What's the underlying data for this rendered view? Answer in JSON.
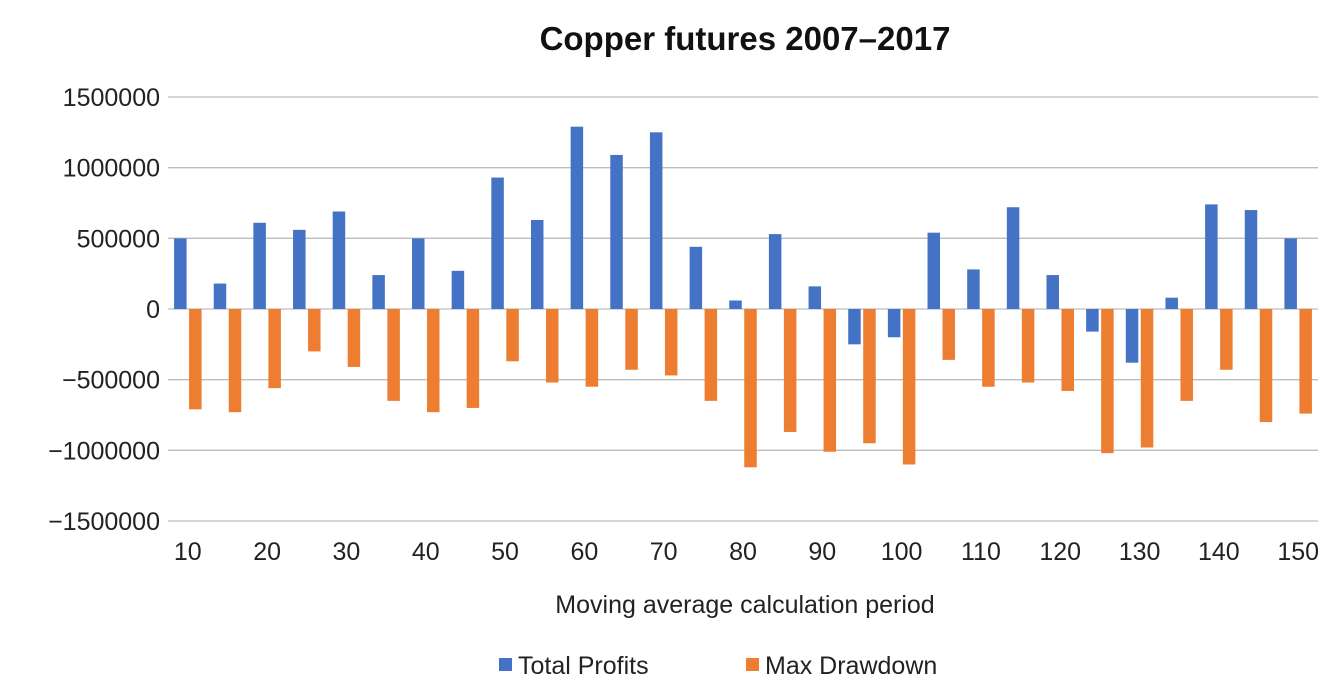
{
  "chart_data": {
    "type": "bar",
    "title": "Copper futures 2007–2017",
    "xlabel": "Moving average calculation period",
    "ylabel": "",
    "ylim": [
      -1500000,
      1500000
    ],
    "y_ticks": [
      1500000,
      1000000,
      500000,
      0,
      -500000,
      -1000000,
      -1500000
    ],
    "y_tick_labels": [
      "1500000",
      "1000000",
      "500000",
      "0",
      "−500000",
      "−1000000",
      "−1500000"
    ],
    "x_tick_labels": [
      "10",
      "20",
      "30",
      "40",
      "50",
      "60",
      "70",
      "80",
      "90",
      "100",
      "110",
      "120",
      "130",
      "140",
      "150"
    ],
    "categories": [
      10,
      15,
      20,
      25,
      30,
      35,
      40,
      45,
      50,
      55,
      60,
      65,
      70,
      75,
      80,
      85,
      90,
      95,
      100,
      105,
      110,
      115,
      120,
      125,
      130,
      135,
      140,
      145,
      150
    ],
    "grid": true,
    "legend_position": "bottom",
    "series": [
      {
        "name": "Total Profits",
        "color": "#4472c4",
        "values": [
          500000,
          180000,
          610000,
          560000,
          690000,
          240000,
          500000,
          270000,
          930000,
          630000,
          1290000,
          1090000,
          1250000,
          440000,
          60000,
          530000,
          160000,
          -250000,
          -200000,
          540000,
          280000,
          720000,
          240000,
          -160000,
          -380000,
          80000,
          740000,
          700000,
          500000
        ]
      },
      {
        "name": "Max Drawdown",
        "color": "#ed7d31",
        "values": [
          -710000,
          -730000,
          -560000,
          -300000,
          -410000,
          -650000,
          -730000,
          -700000,
          -370000,
          -520000,
          -550000,
          -430000,
          -470000,
          -650000,
          -1120000,
          -870000,
          -1010000,
          -950000,
          -1100000,
          -360000,
          -550000,
          -520000,
          -580000,
          -1020000,
          -980000,
          -650000,
          -430000,
          -800000,
          -740000
        ]
      }
    ]
  }
}
